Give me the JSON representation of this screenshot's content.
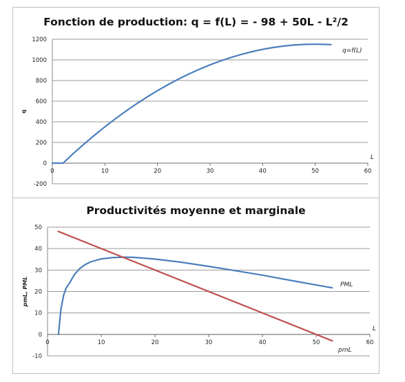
{
  "chart_data": [
    {
      "type": "line",
      "title": "Fonction de production: q = f(L) = - 98 + 50L - L²/2",
      "xlabel": "L",
      "ylabel": "q",
      "xlim": [
        0,
        60
      ],
      "ylim": [
        -200,
        1200
      ],
      "xticks": [
        "0",
        "10",
        "20",
        "30",
        "40",
        "50",
        "60"
      ],
      "yticks": [
        "-200",
        "0",
        "200",
        "400",
        "600",
        "800",
        "1000",
        "1200"
      ],
      "grid": "horizontal",
      "series": [
        {
          "name": "q=f(L)",
          "color": "#4a7ebb",
          "x": [
            0,
            1,
            2,
            2.04,
            4,
            6,
            8,
            10,
            12,
            14,
            16,
            18,
            20,
            22,
            24,
            26,
            28,
            30,
            32,
            34,
            36,
            38,
            40,
            42,
            44,
            46,
            48,
            50,
            52,
            53
          ],
          "y": [
            0,
            0,
            0,
            0,
            94,
            184,
            270,
            352,
            430,
            504,
            574,
            640,
            702,
            760,
            814,
            864,
            910,
            952,
            990,
            1024,
            1054,
            1080,
            1102,
            1120,
            1134,
            1144,
            1150,
            1152,
            1150,
            1148
          ]
        }
      ]
    },
    {
      "type": "line",
      "title": "Productivités moyenne et marginale",
      "xlabel": "L",
      "ylabel": "pmL, PML",
      "xlim": [
        0,
        60
      ],
      "ylim": [
        -10,
        50
      ],
      "xticks": [
        "0",
        "10",
        "20",
        "30",
        "40",
        "50",
        "60"
      ],
      "yticks": [
        "-10",
        "0",
        "10",
        "20",
        "30",
        "40",
        "50"
      ],
      "grid": "horizontal",
      "series": [
        {
          "name": "PML",
          "color": "#4a7ebb",
          "x": [
            2.04,
            2.2,
            2.5,
            3,
            3.5,
            4,
            5,
            6,
            7,
            8,
            10,
            12,
            14,
            16,
            20,
            25,
            30,
            35,
            40,
            45,
            50,
            53
          ],
          "y": [
            0,
            4.5,
            11.8,
            18.3,
            21.8,
            23.5,
            27.9,
            30.7,
            32.5,
            33.8,
            35.2,
            35.8,
            36.0,
            35.9,
            35.1,
            33.6,
            31.7,
            29.7,
            27.6,
            25.3,
            23.0,
            21.7
          ]
        },
        {
          "name": "pmL",
          "color": "#c0504d",
          "x": [
            2,
            53
          ],
          "y": [
            48,
            -3
          ]
        }
      ]
    }
  ]
}
